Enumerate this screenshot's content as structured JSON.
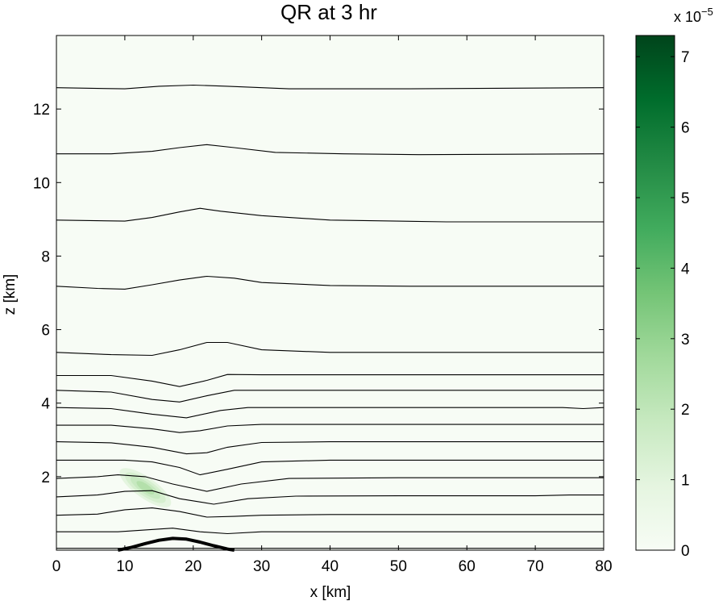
{
  "chart_data": {
    "type": "contour",
    "title": "QR at 3 hr",
    "xlabel": "x [km]",
    "ylabel": "z [km]",
    "xlim": [
      0,
      80
    ],
    "ylim": [
      0,
      14
    ],
    "xticks": [
      0,
      10,
      20,
      30,
      40,
      50,
      60,
      70,
      80
    ],
    "yticks": [
      2,
      4,
      6,
      8,
      10,
      12
    ],
    "grid": false,
    "background_color": "#f7fcf5",
    "colorbar": {
      "min": 0,
      "max": 7.3,
      "ticks": [
        0,
        1,
        2,
        3,
        4,
        5,
        6,
        7
      ],
      "exponent_label": "x 10",
      "exponent": "−5",
      "colors": [
        "#f7fcf5",
        "#e5f5e0",
        "#c7e9c0",
        "#a1d99b",
        "#74c476",
        "#41ab5d",
        "#238b45",
        "#006d2c",
        "#00441b"
      ]
    },
    "rain_blob": {
      "center_x_km": 13.0,
      "center_z_km": 1.7,
      "peak_value_e5": 1.5
    },
    "terrain": [
      [
        9,
        0.0
      ],
      [
        11,
        0.08
      ],
      [
        13,
        0.18
      ],
      [
        15,
        0.27
      ],
      [
        17,
        0.32
      ],
      [
        19,
        0.3
      ],
      [
        21,
        0.22
      ],
      [
        23,
        0.12
      ],
      [
        25,
        0.03
      ],
      [
        26,
        0.0
      ]
    ],
    "isentropes": [
      [
        [
          0,
          0.05
        ],
        [
          80,
          0.05
        ]
      ],
      [
        [
          0,
          0.5
        ],
        [
          9,
          0.5
        ],
        [
          13,
          0.55
        ],
        [
          17,
          0.6
        ],
        [
          21,
          0.5
        ],
        [
          25,
          0.45
        ],
        [
          30,
          0.5
        ],
        [
          57,
          0.5
        ],
        [
          80,
          0.5
        ]
      ],
      [
        [
          0,
          0.95
        ],
        [
          6,
          0.98
        ],
        [
          10,
          1.1
        ],
        [
          14,
          1.15
        ],
        [
          18,
          1.05
        ],
        [
          22,
          0.9
        ],
        [
          26,
          0.92
        ],
        [
          30,
          0.95
        ],
        [
          40,
          0.97
        ],
        [
          55,
          0.97
        ],
        [
          80,
          0.97
        ]
      ],
      [
        [
          0,
          1.45
        ],
        [
          6,
          1.5
        ],
        [
          10,
          1.6
        ],
        [
          14,
          1.62
        ],
        [
          18,
          1.4
        ],
        [
          23,
          1.25
        ],
        [
          28,
          1.4
        ],
        [
          35,
          1.47
        ],
        [
          50,
          1.48
        ],
        [
          70,
          1.48
        ],
        [
          75,
          1.5
        ],
        [
          80,
          1.5
        ]
      ],
      [
        [
          0,
          1.95
        ],
        [
          6,
          2.0
        ],
        [
          9,
          2.05
        ],
        [
          13,
          2.0
        ],
        [
          17,
          1.8
        ],
        [
          22,
          1.6
        ],
        [
          27,
          1.8
        ],
        [
          34,
          1.95
        ],
        [
          50,
          1.97
        ],
        [
          80,
          1.97
        ]
      ],
      [
        [
          0,
          2.45
        ],
        [
          6,
          2.45
        ],
        [
          10,
          2.45
        ],
        [
          14,
          2.4
        ],
        [
          18,
          2.25
        ],
        [
          21,
          2.05
        ],
        [
          25,
          2.2
        ],
        [
          30,
          2.4
        ],
        [
          40,
          2.45
        ],
        [
          80,
          2.45
        ]
      ],
      [
        [
          0,
          2.95
        ],
        [
          8,
          2.92
        ],
        [
          14,
          2.8
        ],
        [
          19,
          2.62
        ],
        [
          22,
          2.65
        ],
        [
          25,
          2.8
        ],
        [
          30,
          2.93
        ],
        [
          40,
          2.95
        ],
        [
          80,
          2.95
        ]
      ],
      [
        [
          0,
          3.4
        ],
        [
          8,
          3.4
        ],
        [
          14,
          3.3
        ],
        [
          18,
          3.2
        ],
        [
          21,
          3.25
        ],
        [
          25,
          3.38
        ],
        [
          30,
          3.42
        ],
        [
          48,
          3.42
        ],
        [
          58,
          3.42
        ],
        [
          80,
          3.42
        ]
      ],
      [
        [
          0,
          3.88
        ],
        [
          8,
          3.85
        ],
        [
          14,
          3.7
        ],
        [
          19,
          3.6
        ],
        [
          24,
          3.8
        ],
        [
          28,
          3.88
        ],
        [
          40,
          3.88
        ],
        [
          74,
          3.88
        ],
        [
          77,
          3.85
        ],
        [
          80,
          3.88
        ]
      ],
      [
        [
          0,
          4.35
        ],
        [
          8,
          4.3
        ],
        [
          14,
          4.1
        ],
        [
          18,
          4.03
        ],
        [
          22,
          4.2
        ],
        [
          26,
          4.35
        ],
        [
          40,
          4.35
        ],
        [
          80,
          4.35
        ]
      ],
      [
        [
          0,
          4.75
        ],
        [
          8,
          4.75
        ],
        [
          14,
          4.6
        ],
        [
          18,
          4.45
        ],
        [
          22,
          4.62
        ],
        [
          25,
          4.78
        ],
        [
          30,
          4.77
        ],
        [
          80,
          4.77
        ]
      ],
      [
        [
          0,
          5.38
        ],
        [
          8,
          5.32
        ],
        [
          14,
          5.3
        ],
        [
          18,
          5.45
        ],
        [
          22,
          5.65
        ],
        [
          25,
          5.65
        ],
        [
          30,
          5.45
        ],
        [
          40,
          5.38
        ],
        [
          80,
          5.38
        ]
      ],
      [
        [
          0,
          7.18
        ],
        [
          6,
          7.12
        ],
        [
          10,
          7.1
        ],
        [
          14,
          7.22
        ],
        [
          18,
          7.35
        ],
        [
          22,
          7.45
        ],
        [
          26,
          7.4
        ],
        [
          30,
          7.28
        ],
        [
          40,
          7.2
        ],
        [
          52,
          7.18
        ],
        [
          80,
          7.18
        ]
      ],
      [
        [
          0,
          8.98
        ],
        [
          10,
          8.95
        ],
        [
          14,
          9.05
        ],
        [
          18,
          9.2
        ],
        [
          21,
          9.3
        ],
        [
          24,
          9.22
        ],
        [
          30,
          9.1
        ],
        [
          40,
          8.98
        ],
        [
          57,
          8.93
        ],
        [
          80,
          8.93
        ]
      ],
      [
        [
          0,
          10.78
        ],
        [
          8,
          10.78
        ],
        [
          14,
          10.85
        ],
        [
          18,
          10.95
        ],
        [
          22,
          11.03
        ],
        [
          26,
          10.95
        ],
        [
          32,
          10.82
        ],
        [
          42,
          10.78
        ],
        [
          53,
          10.76
        ],
        [
          80,
          10.78
        ]
      ],
      [
        [
          0,
          12.58
        ],
        [
          10,
          12.55
        ],
        [
          15,
          12.62
        ],
        [
          20,
          12.65
        ],
        [
          25,
          12.62
        ],
        [
          34,
          12.55
        ],
        [
          50,
          12.55
        ],
        [
          80,
          12.58
        ]
      ]
    ]
  }
}
